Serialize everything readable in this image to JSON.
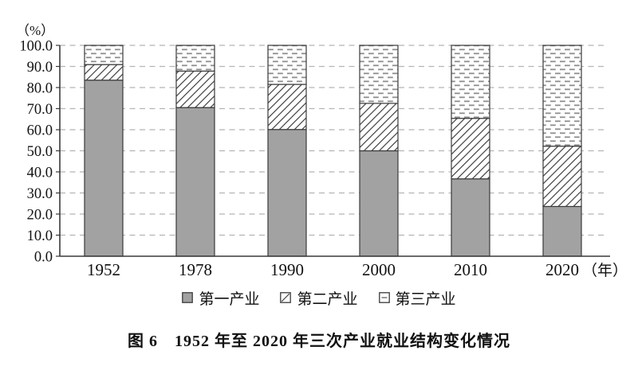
{
  "figure": {
    "caption": "图 6　1952 年至 2020 年三次产业就业结构变化情况"
  },
  "chart_data": {
    "type": "bar",
    "stacked": true,
    "categories": [
      "1952",
      "1978",
      "1990",
      "2000",
      "2010",
      "2020"
    ],
    "series": [
      {
        "name": "第一产业",
        "key": "primary",
        "pattern": "solid-gray",
        "values": [
          83.5,
          70.5,
          60.1,
          50.0,
          36.7,
          23.6
        ]
      },
      {
        "name": "第二产业",
        "key": "secondary",
        "pattern": "diagonal-hatch",
        "values": [
          7.4,
          17.3,
          21.4,
          22.5,
          28.7,
          28.6
        ]
      },
      {
        "name": "第三产业",
        "key": "tertiary",
        "pattern": "dash-stipple",
        "values": [
          9.1,
          12.2,
          18.5,
          27.5,
          34.6,
          47.8
        ]
      }
    ],
    "ylabel": "（%）",
    "x_axis_suffix": "（年）",
    "ylim": [
      0,
      100
    ],
    "ytick_labels": [
      "0.0",
      "10.0",
      "20.0",
      "30.0",
      "40.0",
      "50.0",
      "60.0",
      "70.0",
      "80.0",
      "90.0",
      "100.0"
    ],
    "grid": true,
    "legend_position": "bottom",
    "colors": {
      "bar_fill_gray": "#a2a2a2",
      "bar_border": "#3a3a3a",
      "hatch_line": "#4a4a4a",
      "stipple_dash": "#8e8e8e",
      "grid_line": "#b4b4b4",
      "axis_line": "#3a3a3a",
      "text": "#111111"
    }
  }
}
